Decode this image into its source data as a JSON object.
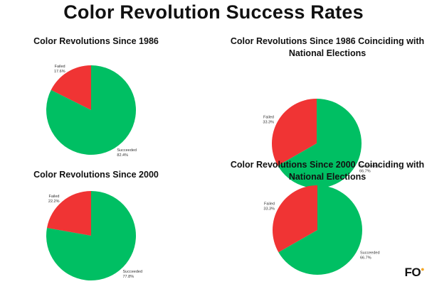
{
  "main_title": "Color Revolution Success Rates",
  "brand": {
    "text": "FO",
    "accent": "#f5a623"
  },
  "colors": {
    "failed": "#f03434",
    "succeeded": "#00bf63"
  },
  "chart_data": [
    {
      "type": "pie",
      "title": "Color Revolutions Since 1986",
      "slices": [
        {
          "label": "Failed",
          "value": 17.6,
          "pct_text": "17.6%"
        },
        {
          "label": "Succeeded",
          "value": 82.4,
          "pct_text": "82.4%"
        }
      ]
    },
    {
      "type": "pie",
      "title": "Color Revolutions Since 1986 Coinciding with National Elections",
      "slices": [
        {
          "label": "Failed",
          "value": 33.3,
          "pct_text": "33.3%"
        },
        {
          "label": "Succeeded",
          "value": 66.7,
          "pct_text": "66.7%"
        }
      ]
    },
    {
      "type": "pie",
      "title": "Color Revolutions Since 2000",
      "slices": [
        {
          "label": "Failed",
          "value": 22.2,
          "pct_text": "22.2%"
        },
        {
          "label": "Succeeded",
          "value": 77.8,
          "pct_text": "77.8%"
        }
      ]
    },
    {
      "type": "pie",
      "title": "Color Revolutions Since 2000 Coinciding with National Elections",
      "slices": [
        {
          "label": "Failed",
          "value": 33.3,
          "pct_text": "33.3%"
        },
        {
          "label": "Succeeded",
          "value": 66.7,
          "pct_text": "66.7%"
        }
      ]
    }
  ]
}
